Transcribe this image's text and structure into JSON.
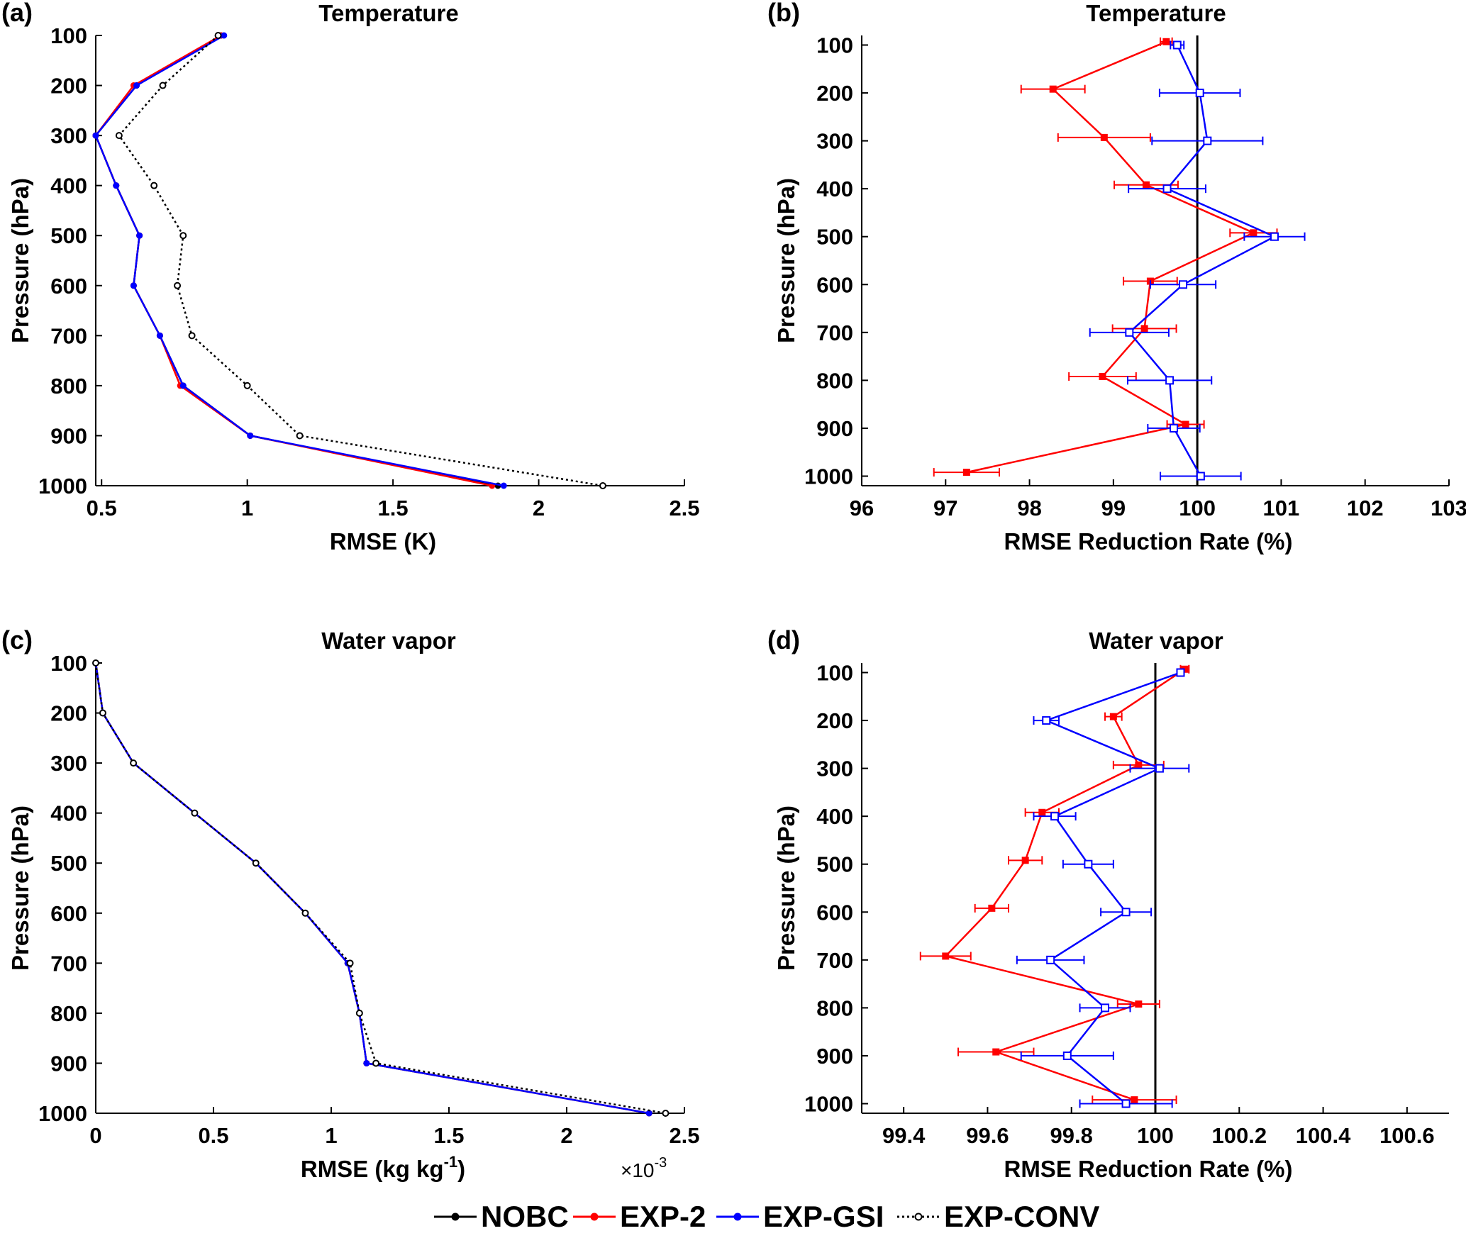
{
  "chart_data": [
    {
      "panel": "(a)",
      "type": "line",
      "title": "Temperature",
      "xlabel": "RMSE (K)",
      "ylabel": "Pressure (hPa)",
      "xlim": [
        0.48,
        2.5
      ],
      "xticks": [
        0.5,
        1,
        1.5,
        2,
        2.5
      ],
      "xtick_labels": [
        "0.5",
        "1",
        "1.5",
        "2",
        "2.5"
      ],
      "ylim": [
        100,
        1000
      ],
      "y_reversed": true,
      "yticks": [
        100,
        200,
        300,
        400,
        500,
        600,
        700,
        800,
        900,
        1000
      ],
      "ytick_labels": [
        "100",
        "200",
        "300",
        "400",
        "500",
        "600",
        "700",
        "800",
        "900",
        "1000"
      ],
      "y": [
        100,
        200,
        300,
        400,
        500,
        600,
        700,
        800,
        900,
        1000
      ],
      "series": [
        {
          "name": "NOBC",
          "color": "#000000",
          "style": "solid",
          "values": [
            0.91,
            0.62,
            0.48,
            0.55,
            0.63,
            0.61,
            0.7,
            0.78,
            1.01,
            1.86
          ]
        },
        {
          "name": "EXP-2",
          "color": "#ff0000",
          "style": "solid",
          "values": [
            0.91,
            0.61,
            0.48,
            0.55,
            0.63,
            0.61,
            0.7,
            0.77,
            1.01,
            1.84
          ]
        },
        {
          "name": "EXP-GSI",
          "color": "#0000ff",
          "style": "solid",
          "values": [
            0.92,
            0.62,
            0.48,
            0.55,
            0.63,
            0.61,
            0.7,
            0.78,
            1.01,
            1.88
          ]
        },
        {
          "name": "EXP-CONV",
          "color": "#000000",
          "style": "dotted",
          "values": [
            0.9,
            0.71,
            0.56,
            0.68,
            0.78,
            0.76,
            0.81,
            1.0,
            1.18,
            2.22
          ]
        }
      ]
    },
    {
      "panel": "(b)",
      "type": "line",
      "title": "Temperature",
      "xlabel": "RMSE Reduction Rate (%)",
      "ylabel": "Pressure (hPa)",
      "xlim": [
        96,
        103
      ],
      "xticks": [
        96,
        97,
        98,
        99,
        100,
        101,
        102,
        103
      ],
      "xtick_labels": [
        "96",
        "97",
        "98",
        "99",
        "100",
        "101",
        "102",
        "103"
      ],
      "ylim": [
        80,
        1020
      ],
      "y_reversed": true,
      "yticks": [
        100,
        200,
        300,
        400,
        500,
        600,
        700,
        800,
        900,
        1000
      ],
      "ytick_labels": [
        "100",
        "200",
        "300",
        "400",
        "500",
        "600",
        "700",
        "800",
        "900",
        "1000"
      ],
      "reference_x": 100,
      "series": [
        {
          "name": "EXP-2",
          "color": "#ff0000",
          "y": [
            93,
            192,
            293,
            392,
            492,
            593,
            692,
            792,
            892,
            992
          ],
          "values": [
            99.63,
            98.28,
            98.89,
            99.39,
            100.67,
            99.44,
            99.37,
            98.87,
            99.86,
            97.25
          ],
          "err": [
            0.07,
            0.38,
            0.55,
            0.38,
            0.28,
            0.32,
            0.38,
            0.4,
            0.22,
            0.39
          ]
        },
        {
          "name": "EXP-GSI",
          "color": "#0000ff",
          "y": [
            100,
            200,
            300,
            400,
            500,
            600,
            700,
            800,
            900,
            1000
          ],
          "values": [
            99.76,
            100.03,
            100.12,
            99.64,
            100.92,
            99.83,
            99.19,
            99.67,
            99.72,
            100.04
          ],
          "err": [
            0.08,
            0.48,
            0.66,
            0.46,
            0.36,
            0.39,
            0.47,
            0.5,
            0.31,
            0.48
          ]
        }
      ]
    },
    {
      "panel": "(c)",
      "type": "line",
      "title": "Water vapor",
      "xlabel": "RMSE (kg kg",
      "xlabel_superscript": "-1",
      "xlabel_suffix": ")",
      "x_multiplier": "×10",
      "x_multiplier_exponent": "-3",
      "ylabel": "Pressure (hPa)",
      "xlim": [
        0,
        2.5
      ],
      "xticks": [
        0,
        0.5,
        1,
        1.5,
        2,
        2.5
      ],
      "xtick_labels": [
        "0",
        "0.5",
        "1",
        "1.5",
        "2",
        "2.5"
      ],
      "ylim": [
        100,
        1000
      ],
      "y_reversed": true,
      "yticks": [
        100,
        200,
        300,
        400,
        500,
        600,
        700,
        800,
        900,
        1000
      ],
      "ytick_labels": [
        "100",
        "200",
        "300",
        "400",
        "500",
        "600",
        "700",
        "800",
        "900",
        "1000"
      ],
      "y": [
        100,
        200,
        300,
        400,
        500,
        600,
        700,
        800,
        900,
        1000
      ],
      "series": [
        {
          "name": "NOBC",
          "color": "#000000",
          "style": "solid",
          "values": [
            0.0,
            0.03,
            0.16,
            0.42,
            0.68,
            0.89,
            1.07,
            1.12,
            1.15,
            2.35
          ]
        },
        {
          "name": "EXP-2",
          "color": "#ff0000",
          "style": "solid",
          "values": [
            0.0,
            0.03,
            0.16,
            0.42,
            0.68,
            0.89,
            1.07,
            1.12,
            1.15,
            2.35
          ]
        },
        {
          "name": "EXP-GSI",
          "color": "#0000ff",
          "style": "solid",
          "values": [
            0.0,
            0.03,
            0.16,
            0.42,
            0.68,
            0.89,
            1.07,
            1.12,
            1.15,
            2.35
          ]
        },
        {
          "name": "EXP-CONV",
          "color": "#000000",
          "style": "dotted",
          "values": [
            0.0,
            0.03,
            0.16,
            0.42,
            0.68,
            0.89,
            1.08,
            1.12,
            1.19,
            2.42
          ]
        }
      ]
    },
    {
      "panel": "(d)",
      "type": "line",
      "title": "Water vapor",
      "xlabel": "RMSE Reduction Rate (%)",
      "ylabel": "Pressure (hPa)",
      "xlim": [
        99.3,
        100.7
      ],
      "xticks": [
        99.4,
        99.6,
        99.8,
        100,
        100.2,
        100.4,
        100.6
      ],
      "xtick_labels": [
        "99.4",
        "99.6",
        "99.8",
        "100",
        "100.2",
        "100.4",
        "100.6"
      ],
      "ylim": [
        80,
        1020
      ],
      "y_reversed": true,
      "yticks": [
        100,
        200,
        300,
        400,
        500,
        600,
        700,
        800,
        900,
        1000
      ],
      "ytick_labels": [
        "100",
        "200",
        "300",
        "400",
        "500",
        "600",
        "700",
        "800",
        "900",
        "1000"
      ],
      "reference_x": 100,
      "series": [
        {
          "name": "EXP-2",
          "color": "#ff0000",
          "y": [
            93,
            192,
            293,
            392,
            492,
            592,
            692,
            792,
            892,
            992
          ],
          "values": [
            100.07,
            99.9,
            99.96,
            99.73,
            99.69,
            99.61,
            99.5,
            99.96,
            99.62,
            99.95
          ],
          "err": [
            0.01,
            0.02,
            0.06,
            0.04,
            0.04,
            0.04,
            0.06,
            0.05,
            0.09,
            0.1
          ]
        },
        {
          "name": "EXP-GSI",
          "color": "#0000ff",
          "y": [
            100,
            200,
            300,
            400,
            500,
            600,
            700,
            800,
            900,
            1000
          ],
          "values": [
            100.06,
            99.74,
            100.01,
            99.76,
            99.84,
            99.93,
            99.75,
            99.88,
            99.79,
            99.93
          ],
          "err": [
            0.005,
            0.03,
            0.07,
            0.05,
            0.06,
            0.06,
            0.08,
            0.06,
            0.11,
            0.11
          ]
        }
      ]
    }
  ],
  "legend": {
    "items": [
      {
        "name": "NOBC",
        "color": "#000000",
        "style": "solid"
      },
      {
        "name": "EXP-2",
        "color": "#ff0000",
        "style": "solid"
      },
      {
        "name": "EXP-GSI",
        "color": "#0000ff",
        "style": "solid"
      },
      {
        "name": "EXP-CONV",
        "color": "#000000",
        "style": "dotted"
      }
    ]
  }
}
